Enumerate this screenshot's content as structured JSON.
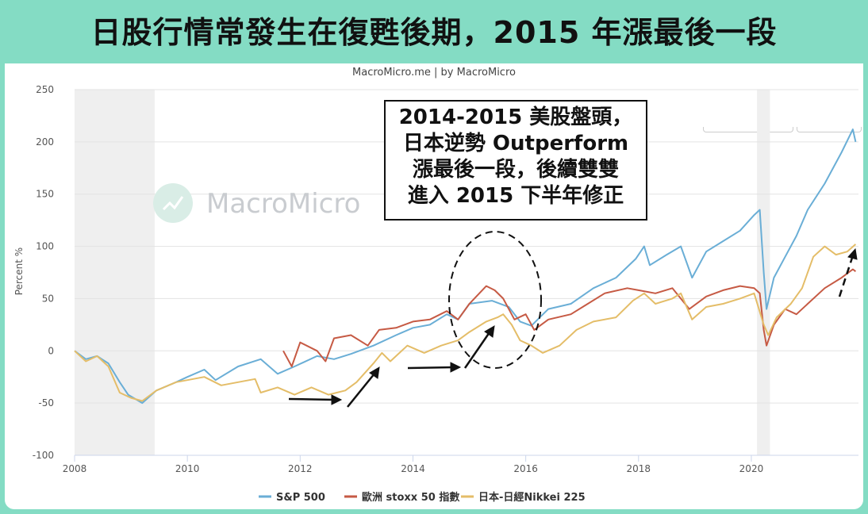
{
  "title": "日股行情常發生在復甦後期，2015 年漲最後一段",
  "source": "MacroMicro.me | by MacroMicro",
  "watermark": "MacroMicro",
  "annotation": {
    "lines": [
      "2014-2015 美股盤頭，",
      "日本逆勢 Outperform",
      "漲最後一段，後續雙雙",
      "進入 2015 下半年修正"
    ]
  },
  "chart_data": {
    "type": "line",
    "title": "",
    "xlabel": "",
    "ylabel": "Percent %",
    "xlim": [
      2008,
      2021.9
    ],
    "ylim": [
      -100,
      250
    ],
    "x_ticks": [
      "2008",
      "2010",
      "2012",
      "2014",
      "2016",
      "2018",
      "2020"
    ],
    "y_ticks": [
      "250",
      "200",
      "150",
      "100",
      "50",
      "0",
      "-50",
      "-100"
    ],
    "recessions": [
      [
        2008.0,
        2009.42
      ],
      [
        2020.1,
        2020.33
      ]
    ],
    "legend_position": "bottom",
    "series": [
      {
        "name": "S&P 500",
        "color": "#6aaed6",
        "points": [
          [
            2008.0,
            0
          ],
          [
            2008.2,
            -8
          ],
          [
            2008.4,
            -5
          ],
          [
            2008.6,
            -12
          ],
          [
            2008.8,
            -30
          ],
          [
            2008.95,
            -42
          ],
          [
            2009.2,
            -50
          ],
          [
            2009.45,
            -38
          ],
          [
            2009.8,
            -30
          ],
          [
            2010.0,
            -25
          ],
          [
            2010.3,
            -18
          ],
          [
            2010.5,
            -28
          ],
          [
            2010.9,
            -15
          ],
          [
            2011.3,
            -8
          ],
          [
            2011.6,
            -22
          ],
          [
            2011.9,
            -15
          ],
          [
            2012.3,
            -5
          ],
          [
            2012.6,
            -8
          ],
          [
            2012.9,
            -3
          ],
          [
            2013.3,
            5
          ],
          [
            2013.7,
            15
          ],
          [
            2014.0,
            22
          ],
          [
            2014.3,
            25
          ],
          [
            2014.6,
            35
          ],
          [
            2014.8,
            30
          ],
          [
            2015.0,
            45
          ],
          [
            2015.4,
            48
          ],
          [
            2015.7,
            42
          ],
          [
            2015.9,
            28
          ],
          [
            2016.1,
            24
          ],
          [
            2016.4,
            40
          ],
          [
            2016.8,
            45
          ],
          [
            2017.2,
            60
          ],
          [
            2017.6,
            70
          ],
          [
            2017.95,
            88
          ],
          [
            2018.1,
            100
          ],
          [
            2018.2,
            82
          ],
          [
            2018.5,
            92
          ],
          [
            2018.75,
            100
          ],
          [
            2018.95,
            70
          ],
          [
            2019.2,
            95
          ],
          [
            2019.5,
            105
          ],
          [
            2019.8,
            115
          ],
          [
            2020.05,
            130
          ],
          [
            2020.15,
            135
          ],
          [
            2020.22,
            75
          ],
          [
            2020.27,
            40
          ],
          [
            2020.4,
            70
          ],
          [
            2020.6,
            90
          ],
          [
            2020.8,
            110
          ],
          [
            2021.0,
            135
          ],
          [
            2021.3,
            160
          ],
          [
            2021.6,
            190
          ],
          [
            2021.8,
            212
          ],
          [
            2021.85,
            200
          ]
        ]
      },
      {
        "name": "歐洲 stoxx 50 指數",
        "color": "#c65a44",
        "points": [
          [
            2011.7,
            0
          ],
          [
            2011.85,
            -15
          ],
          [
            2012.0,
            8
          ],
          [
            2012.3,
            0
          ],
          [
            2012.45,
            -10
          ],
          [
            2012.6,
            12
          ],
          [
            2012.9,
            15
          ],
          [
            2013.2,
            5
          ],
          [
            2013.4,
            20
          ],
          [
            2013.7,
            22
          ],
          [
            2014.0,
            28
          ],
          [
            2014.3,
            30
          ],
          [
            2014.6,
            38
          ],
          [
            2014.8,
            30
          ],
          [
            2015.0,
            45
          ],
          [
            2015.3,
            62
          ],
          [
            2015.45,
            58
          ],
          [
            2015.6,
            50
          ],
          [
            2015.8,
            30
          ],
          [
            2016.0,
            35
          ],
          [
            2016.15,
            20
          ],
          [
            2016.4,
            30
          ],
          [
            2016.8,
            35
          ],
          [
            2017.1,
            45
          ],
          [
            2017.4,
            55
          ],
          [
            2017.8,
            60
          ],
          [
            2018.0,
            58
          ],
          [
            2018.3,
            55
          ],
          [
            2018.6,
            60
          ],
          [
            2018.9,
            40
          ],
          [
            2019.2,
            52
          ],
          [
            2019.5,
            58
          ],
          [
            2019.8,
            62
          ],
          [
            2020.05,
            60
          ],
          [
            2020.15,
            55
          ],
          [
            2020.22,
            20
          ],
          [
            2020.27,
            5
          ],
          [
            2020.4,
            25
          ],
          [
            2020.6,
            40
          ],
          [
            2020.8,
            35
          ],
          [
            2021.0,
            45
          ],
          [
            2021.3,
            60
          ],
          [
            2021.6,
            70
          ],
          [
            2021.8,
            78
          ],
          [
            2021.85,
            76
          ]
        ]
      },
      {
        "name": "日本-日經Nikkei 225",
        "color": "#e4bd68",
        "points": [
          [
            2008.0,
            0
          ],
          [
            2008.2,
            -10
          ],
          [
            2008.4,
            -5
          ],
          [
            2008.6,
            -15
          ],
          [
            2008.8,
            -40
          ],
          [
            2009.0,
            -45
          ],
          [
            2009.2,
            -48
          ],
          [
            2009.45,
            -38
          ],
          [
            2009.8,
            -30
          ],
          [
            2010.0,
            -28
          ],
          [
            2010.3,
            -25
          ],
          [
            2010.6,
            -33
          ],
          [
            2010.9,
            -30
          ],
          [
            2011.2,
            -27
          ],
          [
            2011.3,
            -40
          ],
          [
            2011.6,
            -35
          ],
          [
            2011.9,
            -42
          ],
          [
            2012.2,
            -35
          ],
          [
            2012.5,
            -42
          ],
          [
            2012.8,
            -38
          ],
          [
            2013.0,
            -30
          ],
          [
            2013.3,
            -12
          ],
          [
            2013.45,
            -2
          ],
          [
            2013.6,
            -10
          ],
          [
            2013.9,
            5
          ],
          [
            2014.2,
            -2
          ],
          [
            2014.5,
            5
          ],
          [
            2014.8,
            10
          ],
          [
            2015.0,
            18
          ],
          [
            2015.3,
            28
          ],
          [
            2015.5,
            32
          ],
          [
            2015.6,
            35
          ],
          [
            2015.75,
            25
          ],
          [
            2015.9,
            10
          ],
          [
            2016.1,
            5
          ],
          [
            2016.3,
            -2
          ],
          [
            2016.6,
            5
          ],
          [
            2016.9,
            20
          ],
          [
            2017.2,
            28
          ],
          [
            2017.6,
            32
          ],
          [
            2017.9,
            48
          ],
          [
            2018.1,
            55
          ],
          [
            2018.3,
            45
          ],
          [
            2018.6,
            50
          ],
          [
            2018.75,
            55
          ],
          [
            2018.95,
            30
          ],
          [
            2019.2,
            42
          ],
          [
            2019.5,
            45
          ],
          [
            2019.8,
            50
          ],
          [
            2020.05,
            55
          ],
          [
            2020.22,
            25
          ],
          [
            2020.3,
            15
          ],
          [
            2020.45,
            32
          ],
          [
            2020.7,
            45
          ],
          [
            2020.9,
            60
          ],
          [
            2021.1,
            90
          ],
          [
            2021.3,
            100
          ],
          [
            2021.5,
            92
          ],
          [
            2021.7,
            95
          ],
          [
            2021.85,
            102
          ]
        ]
      }
    ]
  }
}
